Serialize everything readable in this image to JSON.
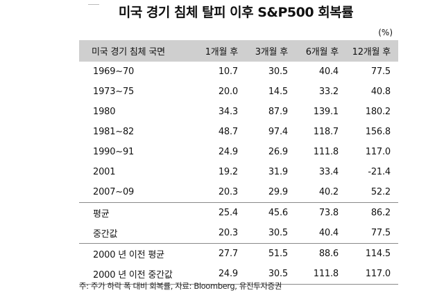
{
  "title": "미국 경기 침체 탈피 이후 S&P500 회복률",
  "unit": "(%)",
  "columns": [
    "미국 경기 침체 국면",
    "1개월 후",
    "3개월 후",
    "6개월 후",
    "12개월 후"
  ],
  "rows": [
    {
      "label": "1969~70",
      "v": [
        "10.7",
        "30.5",
        "40.4",
        "77.5"
      ]
    },
    {
      "label": "1973~75",
      "v": [
        "20.0",
        "14.5",
        "33.2",
        "40.8"
      ]
    },
    {
      "label": "1980",
      "v": [
        "34.3",
        "87.9",
        "139.1",
        "180.2"
      ]
    },
    {
      "label": "1981~82",
      "v": [
        "48.7",
        "97.4",
        "118.7",
        "156.8"
      ]
    },
    {
      "label": "1990~91",
      "v": [
        "24.9",
        "26.9",
        "111.8",
        "117.0"
      ]
    },
    {
      "label": "2001",
      "v": [
        "19.2",
        "31.9",
        "33.4",
        "-21.4"
      ]
    },
    {
      "label": "2007~09",
      "v": [
        "20.3",
        "29.9",
        "40.2",
        "52.2"
      ]
    },
    {
      "label": "평균",
      "v": [
        "25.4",
        "45.6",
        "73.8",
        "86.2"
      ]
    },
    {
      "label": "중간값",
      "v": [
        "20.3",
        "30.5",
        "40.4",
        "77.5"
      ]
    },
    {
      "label": "2000 년 이전 평균",
      "v": [
        "27.7",
        "51.5",
        "88.6",
        "114.5"
      ]
    },
    {
      "label": "2000 년 이전 중간값",
      "v": [
        "24.9",
        "30.5",
        "111.8",
        "117.0"
      ]
    }
  ],
  "note": "주: 주가 하락 폭 대비 회복률, 자료: Bloomberg, 유진투자증권"
}
